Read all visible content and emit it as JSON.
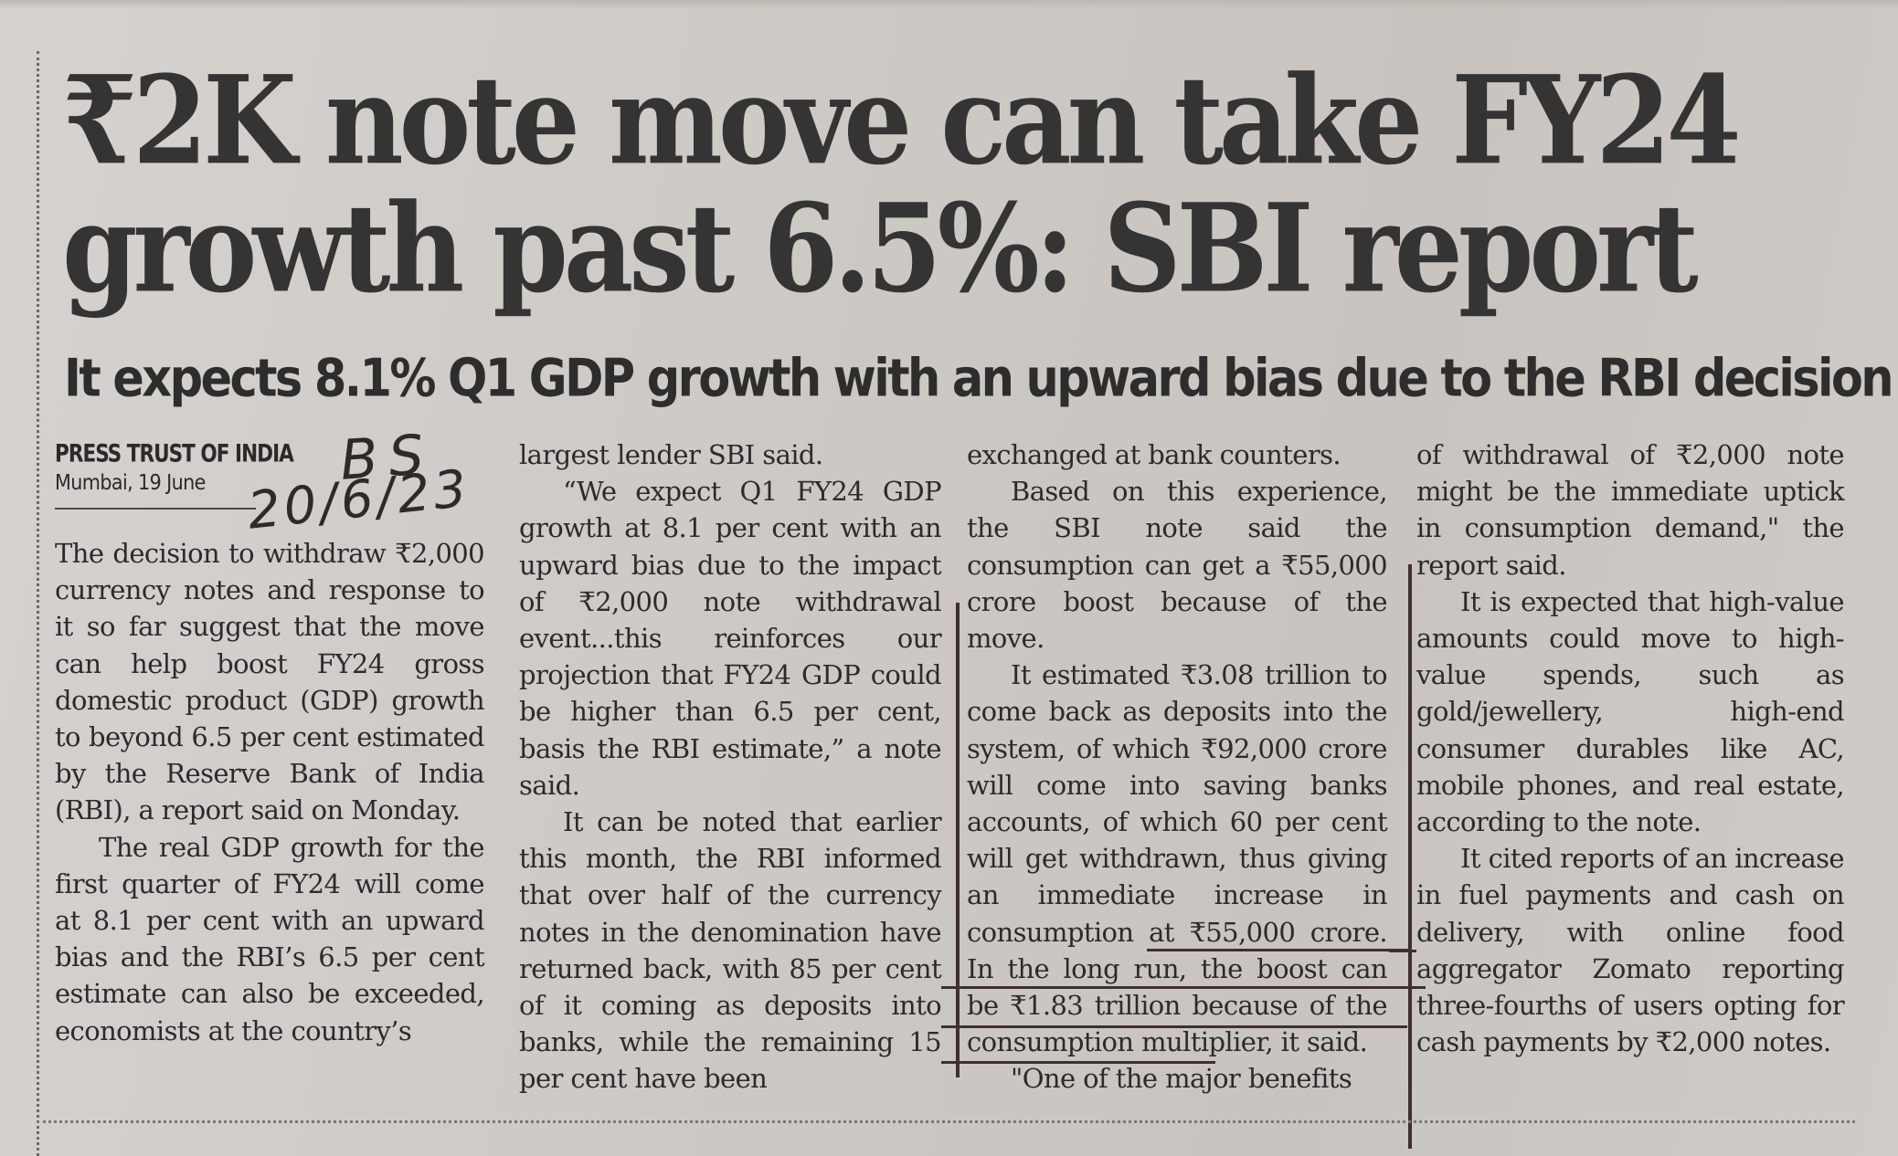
{
  "article": {
    "headline": {
      "line1": "₹2K note move can take FY24",
      "line2": "growth past 6.5%: SBI report"
    },
    "subheadline": "It expects 8.1% Q1 GDP growth with an upward bias due to the RBI decision",
    "byline": {
      "agency": "PRESS TRUST OF INDIA",
      "dateline": "Mumbai, 19 June"
    },
    "handwritten_annotation": {
      "initials": "BS",
      "date": "20/6/23"
    },
    "columns": [
      {
        "paragraphs": [
          "The decision to withdraw ₹2,000 currency notes and response to it so far suggest that the move can help boost FY24 gross domestic product (GDP) growth to beyond 6.5 per cent estimated by the Reserve Bank of India (RBI), a report said on Monday.",
          "The real GDP growth for the first quarter of FY24 will come at 8.1 per cent with an upward bias and the RBI’s 6.5 per cent estimate can also be exceeded, economists at the country’s"
        ]
      },
      {
        "paragraphs": [
          "largest lender SBI said.",
          "“We expect Q1 FY24 GDP growth at 8.1 per cent with an upward bias due to the impact of ₹2,000 note withdrawal event...this reinforces our projection that FY24 GDP could be higher than 6.5 per cent, basis the RBI estimate,” a note said.",
          "It can be noted that earlier this month, the RBI informed that over half of the currency notes in the denomination have returned back, with 85 per cent of it coming as deposits into banks, while the remaining 15 per cent have been"
        ]
      },
      {
        "paragraphs": [
          "exchanged at bank counters.",
          "Based on this experience, the SBI note said the consumption can get a ₹55,000 crore boost because of the move.",
          "It estimated ₹3.08 trillion to come back as deposits into the system, of which ₹92,000 crore will come into saving banks accounts, of which 60 per cent will get withdrawn, thus giving an immediate increase in consumption at ₹55,000 crore. In the long run, the boost can be ₹1.83 trillion because of the consumption multiplier, it said.",
          "\"One of the major benefits"
        ]
      },
      {
        "paragraphs": [
          "of withdrawal of ₹2,000 note might be the immediate uptick in consumption demand,\" the report said.",
          "It is expected that high-value amounts could move to high-value spends, such as gold/jewellery, high-end consumer durables like AC, mobile phones, and real estate, according to the note.",
          "It cited reports of an increase in fuel payments and cash on delivery, with online food aggregator Zomato reporting three-fourths of users opting for cash payments by ₹2,000 notes."
        ]
      }
    ]
  },
  "colors": {
    "paper": "#cfcac6",
    "ink": "#2c2b2b",
    "pen_annotation": "#3e2f35"
  }
}
